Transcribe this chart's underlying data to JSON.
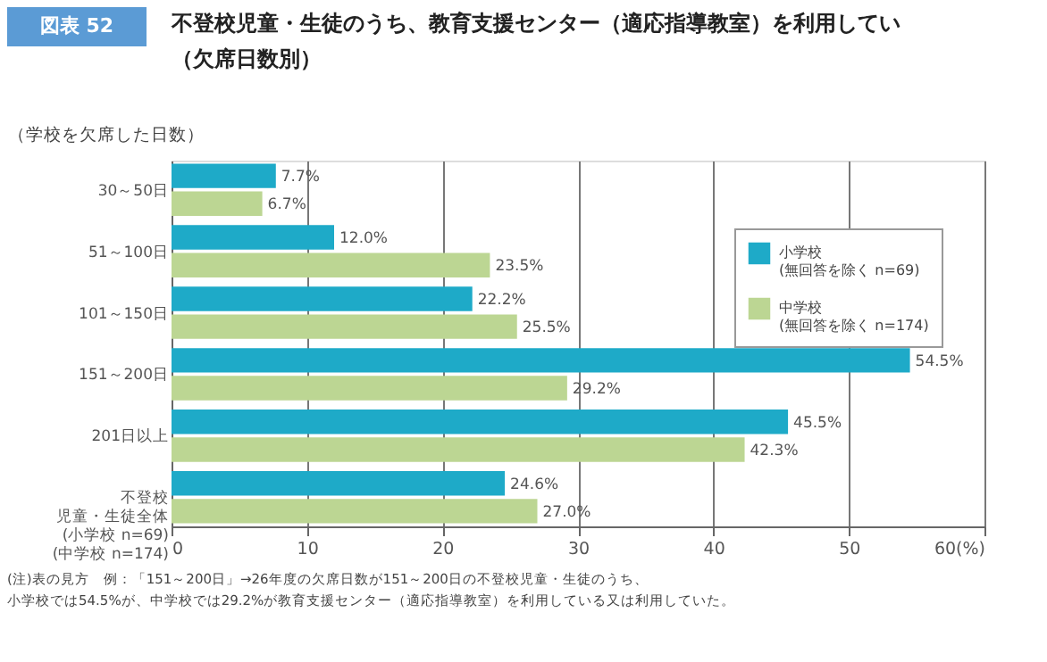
{
  "chart_data": {
    "type": "bar",
    "orientation": "horizontal",
    "title": "不登校児童・生徒のうち、教育支援センター（適応指導教室）を利用してい（欠席日数別）",
    "ylabel": "（学校を欠席した日数）",
    "categories": [
      "30～50日",
      "51～100日",
      "101～150日",
      "151～200日",
      "201日以上",
      "不登校児童・生徒全体\n(小学校 n=69)\n(中学校 n=174)"
    ],
    "series": [
      {
        "name": "小学校\n(無回答を除く n=69)",
        "color": "#1eaac8",
        "values": [
          7.7,
          12.0,
          22.2,
          54.5,
          45.5,
          24.6
        ],
        "value_labels": [
          "7.7%",
          "12.0%",
          "22.2%",
          "54.5%",
          "45.5%",
          "24.6%"
        ]
      },
      {
        "name": "中学校\n(無回答を除く n=174)",
        "color": "#bcd693",
        "values": [
          6.7,
          23.5,
          25.5,
          29.2,
          42.3,
          27.0
        ],
        "value_labels": [
          "6.7%",
          "23.5%",
          "25.5%",
          "29.2%",
          "42.3%",
          "27.0%"
        ]
      }
    ],
    "xlim": [
      0,
      60
    ],
    "xticks": [
      0,
      10,
      20,
      30,
      40,
      50,
      {
        "value": 60,
        "label": "60(%)"
      }
    ],
    "grid": "x",
    "legend": "top right",
    "annotations": [
      "図表 52",
      "(注)表の見方　例：「151～200日」→26年度の欠席日数が151～200日の不登校児童・生徒のうち、小学校では54.5%が、中学校では29.2%が教育支援センター（適応指導教室）を利用している又は利用していた。"
    ]
  }
}
